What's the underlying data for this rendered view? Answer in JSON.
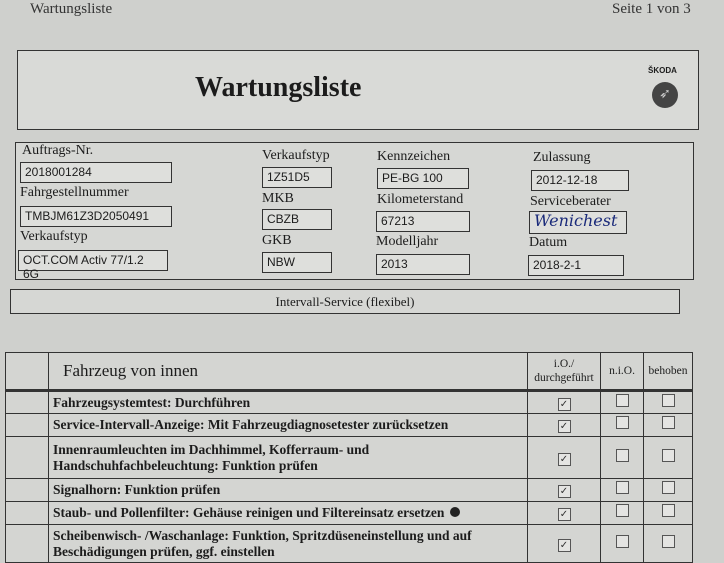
{
  "page_header": {
    "doc_name": "Wartungsliste",
    "page": "Seite 1 von 3"
  },
  "title": "Wartungsliste",
  "brand": "ŠKODA",
  "info": {
    "auftrag_label": "Auftrags-Nr.",
    "auftrag": "2018001284",
    "fahrgestell_label": "Fahrgestellnummer",
    "fahrgestell": "TMBJM61Z3D2050491",
    "verkaufstyp_label": "Verkaufstyp",
    "verkaufstyp": "OCT.COM Activ 77/1.2 6G",
    "verkaufstyp2_label": "Verkaufstyp",
    "verkaufstyp2": "1Z51D5",
    "mkb_label": "MKB",
    "mkb": "CBZB",
    "gkb_label": "GKB",
    "gkb": "NBW",
    "kennzeichen_label": "Kennzeichen",
    "kennzeichen": "PE-BG 100",
    "km_label": "Kilometerstand",
    "km": "67213",
    "modelljahr_label": "Modelljahr",
    "modelljahr": "2013",
    "zulassung_label": "Zulassung",
    "zulassung": "2012-12-18",
    "berater_label": "Serviceberater",
    "berater_signature": "Wenichest",
    "datum_label": "Datum",
    "datum": "2018-2-1"
  },
  "interval": "Intervall-Service (flexibel)",
  "table": {
    "section": "Fahrzeug von innen",
    "col_io": "i.O./ durchgeführt",
    "col_nio": "n.i.O.",
    "col_behoben": "behoben",
    "rows": [
      {
        "text": "Fahrzeugsystemtest: Durchführen",
        "io": true,
        "nio": false,
        "behoben": false
      },
      {
        "text": "Service-Intervall-Anzeige: Mit Fahrzeugdiagnosetester zurücksetzen",
        "io": true,
        "nio": false,
        "behoben": false
      },
      {
        "text": "Innenraumleuchten im Dachhimmel, Kofferraum- und Handschuhfachbeleuchtung: Funktion prüfen",
        "io": true,
        "nio": false,
        "behoben": false
      },
      {
        "text": "Signalhorn: Funktion prüfen",
        "io": true,
        "nio": false,
        "behoben": false
      },
      {
        "text": "Staub- und Pollenfilter: Gehäuse reinigen und Filtereinsatz ersetzen",
        "io": true,
        "nio": false,
        "behoben": false,
        "marker": true
      },
      {
        "text": "Scheibenwisch- /Waschanlage: Funktion, Spritzdüseneinstellung und auf Beschädigungen prüfen, ggf. einstellen",
        "io": true,
        "nio": false,
        "behoben": false
      }
    ]
  }
}
